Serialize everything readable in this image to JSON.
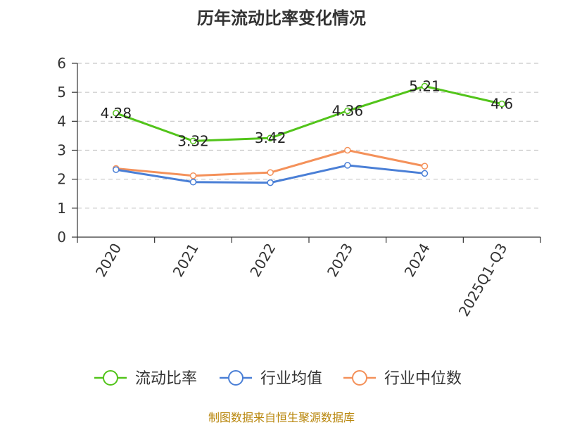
{
  "title": "历年流动比率变化情况",
  "source": "制图数据来自恒生聚源数据库",
  "chart_data": {
    "type": "line",
    "title": "历年流动比率变化情况",
    "categories": [
      "2020",
      "2021",
      "2022",
      "2023",
      "2024",
      "2025Q1-Q3"
    ],
    "ylim": [
      0,
      6
    ],
    "yticks": [
      0,
      1,
      2,
      3,
      4,
      5,
      6
    ],
    "grid": true,
    "legend_position": "bottom",
    "series": [
      {
        "name": "流动比率",
        "color": "#52c41a",
        "values": [
          4.28,
          3.32,
          3.42,
          4.36,
          5.21,
          4.6
        ],
        "show_labels": true,
        "labels": [
          "4.28",
          "3.32",
          "3.42",
          "4.36",
          "5.21",
          "4.6"
        ]
      },
      {
        "name": "行业均值",
        "color": "#4a7fd6",
        "values": [
          2.33,
          1.9,
          1.88,
          2.48,
          2.2,
          null
        ],
        "show_labels": false
      },
      {
        "name": "行业中位数",
        "color": "#f4915a",
        "values": [
          2.37,
          2.12,
          2.23,
          3.0,
          2.45,
          null
        ],
        "show_labels": false
      }
    ]
  }
}
